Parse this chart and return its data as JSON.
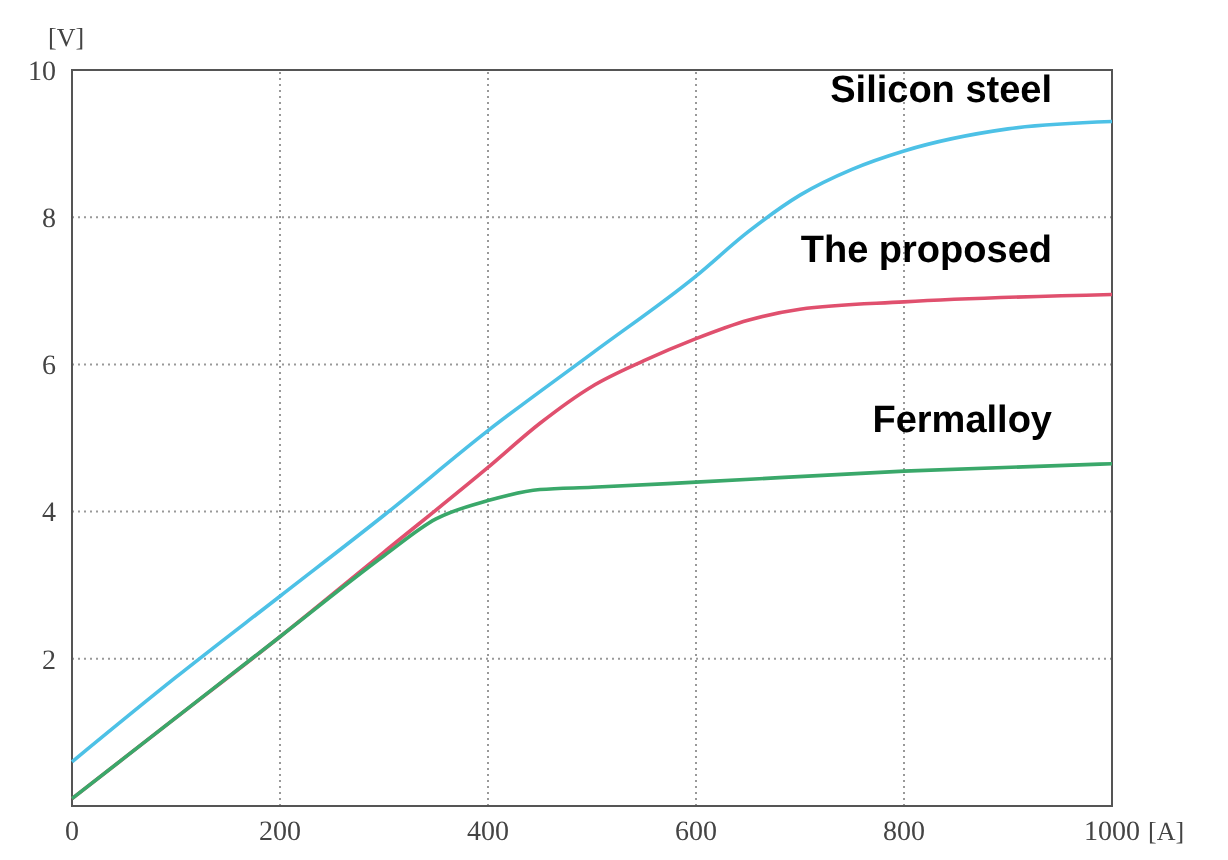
{
  "chart_data": {
    "type": "line",
    "xlabel": "[A]",
    "ylabel": "[V]",
    "xlim": [
      0,
      1000
    ],
    "ylim": [
      0,
      10
    ],
    "xticks": [
      0,
      200,
      400,
      600,
      800,
      1000
    ],
    "yticks": [
      {
        "value": 0,
        "label": null
      },
      2,
      4,
      6,
      8,
      10
    ],
    "grid": true,
    "line_style": "solid",
    "series": [
      {
        "name": "Silicon steel",
        "color": "#4dc1e6",
        "x": [
          0,
          100,
          200,
          300,
          400,
          500,
          600,
          650,
          700,
          750,
          800,
          900,
          1000
        ],
        "values": [
          0.6,
          1.75,
          2.85,
          3.95,
          5.1,
          6.15,
          7.2,
          7.8,
          8.3,
          8.65,
          8.9,
          9.2,
          9.3
        ]
      },
      {
        "name": "The proposed",
        "color": "#e0506e",
        "x": [
          0,
          100,
          200,
          300,
          400,
          450,
          500,
          550,
          600,
          650,
          700,
          800,
          1000
        ],
        "values": [
          0.1,
          1.2,
          2.3,
          3.45,
          4.6,
          5.2,
          5.7,
          6.05,
          6.35,
          6.6,
          6.75,
          6.85,
          6.95
        ]
      },
      {
        "name": "Fermalloy",
        "color": "#3aa86a",
        "x": [
          0,
          100,
          200,
          300,
          350,
          400,
          450,
          500,
          600,
          800,
          1000
        ],
        "values": [
          0.1,
          1.2,
          2.3,
          3.4,
          3.9,
          4.15,
          4.3,
          4.33,
          4.4,
          4.55,
          4.65
        ]
      }
    ]
  }
}
